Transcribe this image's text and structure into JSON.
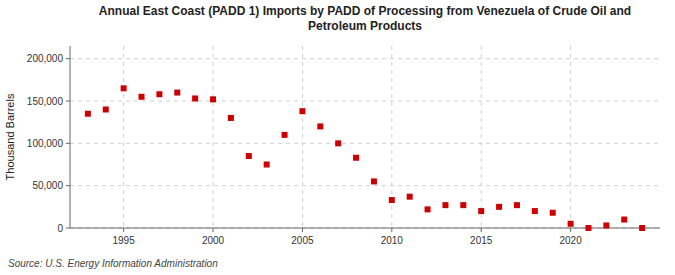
{
  "chart_data": {
    "type": "scatter",
    "title": "Annual East Coast (PADD 1) Imports by PADD of Processing from Venezuela of Crude Oil and\nPetroleum Products",
    "ylabel": "Thousand Barrels",
    "source": "Source: U.S. Energy Information Administration",
    "x": [
      1993,
      1994,
      1995,
      1996,
      1997,
      1998,
      1999,
      2000,
      2001,
      2002,
      2003,
      2004,
      2005,
      2006,
      2007,
      2008,
      2009,
      2010,
      2011,
      2012,
      2013,
      2014,
      2015,
      2016,
      2017,
      2018,
      2019,
      2020,
      2021,
      2022,
      2023,
      2024
    ],
    "values": [
      135000,
      140000,
      165000,
      155000,
      158000,
      160000,
      153000,
      152000,
      130000,
      85000,
      75000,
      110000,
      138000,
      120000,
      100000,
      83000,
      55000,
      33000,
      37000,
      22000,
      27000,
      27000,
      20000,
      25000,
      27000,
      20000,
      18000,
      5000,
      0,
      3000,
      10000,
      0
    ],
    "color": "#cc0000",
    "marker": "square",
    "xlim": [
      1992,
      2025
    ],
    "ylim": [
      0,
      215000
    ],
    "xticks": [
      1995,
      2000,
      2005,
      2010,
      2015,
      2020
    ],
    "yticks": [
      0,
      {
        "value": 50000,
        "label": "50,000"
      },
      {
        "value": 100000,
        "label": "100,000"
      },
      {
        "value": 150000,
        "label": "150,000"
      },
      {
        "value": 200000,
        "label": "200,000"
      }
    ],
    "grid": true
  }
}
